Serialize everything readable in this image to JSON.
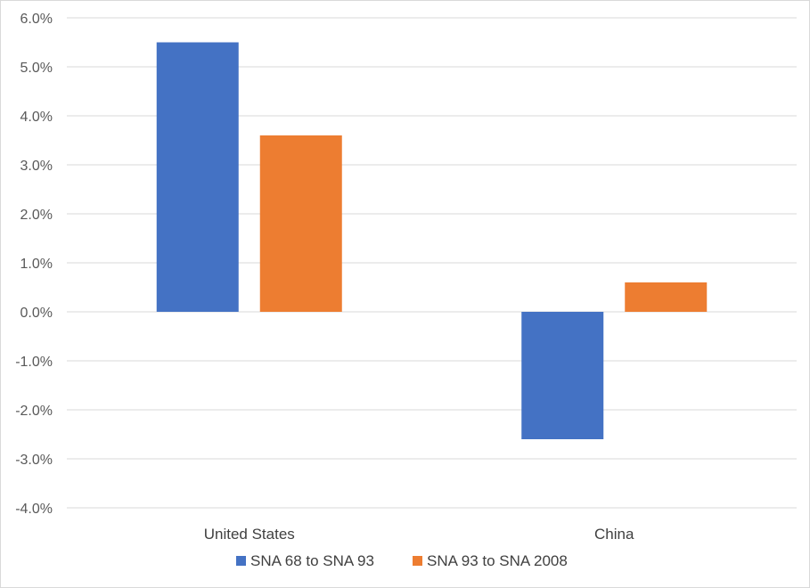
{
  "chart_data": {
    "type": "bar",
    "title": "",
    "xlabel": "",
    "ylabel": "",
    "categories": [
      "United States",
      "China"
    ],
    "series": [
      {
        "name": "SNA 68 to SNA 93",
        "color": "#4472C4",
        "values": [
          5.5,
          -2.6
        ]
      },
      {
        "name": "SNA 93 to SNA 2008",
        "color": "#ED7D31",
        "values": [
          3.6,
          0.6
        ]
      }
    ],
    "ylim": [
      -4.0,
      6.0
    ],
    "y_ticks": [
      6.0,
      5.0,
      4.0,
      3.0,
      2.0,
      1.0,
      0.0,
      -1.0,
      -2.0,
      -3.0,
      -4.0
    ],
    "y_tick_labels": [
      "6.0%",
      "5.0%",
      "4.0%",
      "3.0%",
      "2.0%",
      "1.0%",
      "0.0%",
      "-1.0%",
      "-2.0%",
      "-3.0%",
      "-4.0%"
    ],
    "grid": true,
    "legend_position": "bottom"
  }
}
